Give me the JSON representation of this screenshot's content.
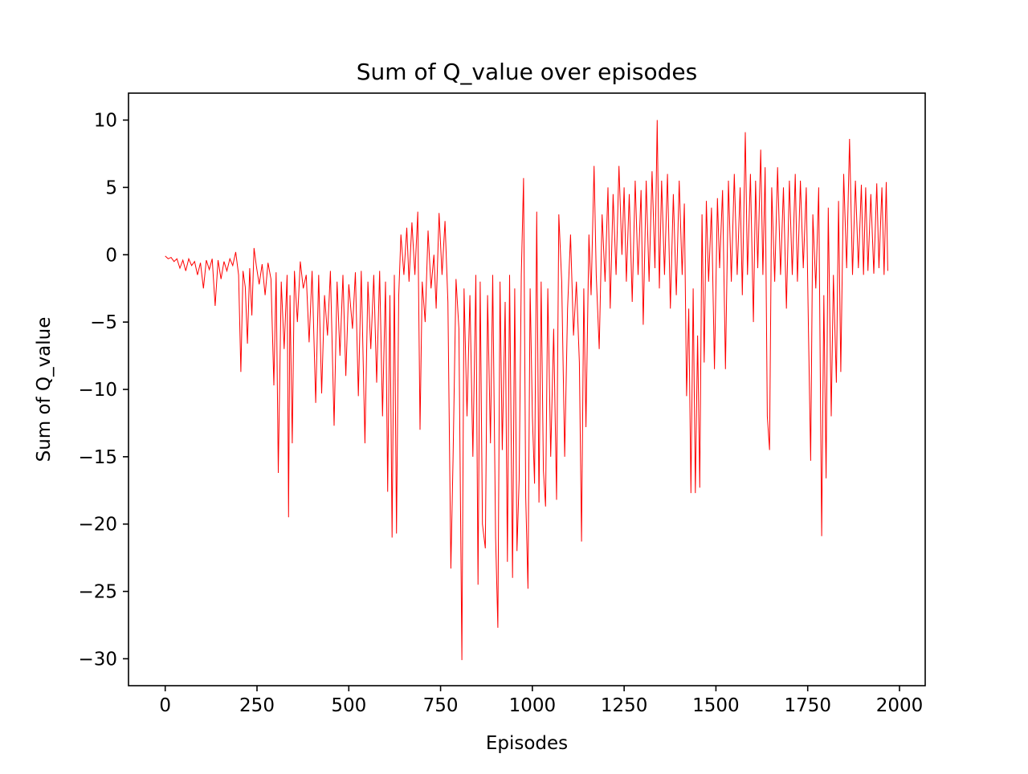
{
  "chart_data": {
    "type": "line",
    "title": "Sum of Q_value over episodes",
    "xlabel": "Episodes",
    "ylabel": "Sum of Q_value",
    "xlim": [
      -100,
      2070
    ],
    "ylim": [
      -32,
      12
    ],
    "xticks": [
      0,
      250,
      500,
      750,
      1000,
      1250,
      1500,
      1750,
      2000
    ],
    "xtick_labels": [
      "0",
      "250",
      "500",
      "750",
      "1000",
      "1250",
      "1500",
      "1750",
      "2000"
    ],
    "yticks": [
      10,
      5,
      0,
      -5,
      -10,
      -15,
      -20,
      -25,
      -30
    ],
    "ytick_labels": [
      "10",
      "5",
      "0",
      "−5",
      "−10",
      "−15",
      "−20",
      "−25",
      "−30"
    ],
    "grid": false,
    "legend": "none",
    "series": [
      {
        "color": "#ff0000",
        "points": [
          [
            0,
            -0.1
          ],
          [
            8,
            -0.3
          ],
          [
            16,
            -0.2
          ],
          [
            24,
            -0.5
          ],
          [
            32,
            -0.3
          ],
          [
            40,
            -1.0
          ],
          [
            48,
            -0.4
          ],
          [
            56,
            -1.2
          ],
          [
            64,
            -0.3
          ],
          [
            72,
            -0.8
          ],
          [
            80,
            -0.5
          ],
          [
            88,
            -1.5
          ],
          [
            96,
            -0.6
          ],
          [
            104,
            -2.5
          ],
          [
            112,
            -0.4
          ],
          [
            120,
            -1.1
          ],
          [
            128,
            -0.3
          ],
          [
            136,
            -3.8
          ],
          [
            144,
            -0.4
          ],
          [
            152,
            -1.8
          ],
          [
            160,
            -0.5
          ],
          [
            168,
            -1.2
          ],
          [
            176,
            -0.3
          ],
          [
            184,
            -0.8
          ],
          [
            192,
            0.2
          ],
          [
            200,
            -1.5
          ],
          [
            206,
            -8.7
          ],
          [
            212,
            -1.2
          ],
          [
            218,
            -2.4
          ],
          [
            224,
            -6.6
          ],
          [
            230,
            -1.0
          ],
          [
            236,
            -4.5
          ],
          [
            242,
            0.5
          ],
          [
            248,
            -0.8
          ],
          [
            256,
            -2.2
          ],
          [
            264,
            -0.7
          ],
          [
            272,
            -3.0
          ],
          [
            280,
            -0.6
          ],
          [
            288,
            -1.8
          ],
          [
            296,
            -9.7
          ],
          [
            302,
            -1.3
          ],
          [
            308,
            -16.2
          ],
          [
            316,
            -2.0
          ],
          [
            324,
            -7.0
          ],
          [
            332,
            -1.5
          ],
          [
            336,
            -19.5
          ],
          [
            340,
            -3.0
          ],
          [
            346,
            -14.0
          ],
          [
            352,
            -1.2
          ],
          [
            360,
            -5.0
          ],
          [
            368,
            -0.5
          ],
          [
            376,
            -2.5
          ],
          [
            384,
            -1.5
          ],
          [
            392,
            -6.5
          ],
          [
            400,
            -1.2
          ],
          [
            410,
            -11.0
          ],
          [
            418,
            -1.5
          ],
          [
            426,
            -10.3
          ],
          [
            434,
            -3.0
          ],
          [
            442,
            -6.0
          ],
          [
            450,
            -1.2
          ],
          [
            460,
            -12.7
          ],
          [
            468,
            -2.0
          ],
          [
            476,
            -7.5
          ],
          [
            484,
            -1.5
          ],
          [
            492,
            -9.0
          ],
          [
            500,
            -2.2
          ],
          [
            510,
            -5.5
          ],
          [
            518,
            -1.3
          ],
          [
            526,
            -10.5
          ],
          [
            534,
            -1.2
          ],
          [
            544,
            -14.0
          ],
          [
            552,
            -2.0
          ],
          [
            560,
            -7.0
          ],
          [
            568,
            -1.5
          ],
          [
            576,
            -9.5
          ],
          [
            584,
            -1.2
          ],
          [
            592,
            -12.0
          ],
          [
            600,
            -2.0
          ],
          [
            606,
            -17.6
          ],
          [
            612,
            -3.0
          ],
          [
            618,
            -21.0
          ],
          [
            624,
            -1.5
          ],
          [
            630,
            -20.7
          ],
          [
            636,
            -3.0
          ],
          [
            642,
            1.5
          ],
          [
            650,
            -1.5
          ],
          [
            658,
            2.0
          ],
          [
            664,
            -2.0
          ],
          [
            672,
            2.4
          ],
          [
            680,
            -1.5
          ],
          [
            688,
            3.2
          ],
          [
            694,
            -13.0
          ],
          [
            700,
            -2.0
          ],
          [
            708,
            -5.0
          ],
          [
            716,
            1.8
          ],
          [
            724,
            -2.5
          ],
          [
            732,
            0.0
          ],
          [
            738,
            -4.0
          ],
          [
            746,
            3.1
          ],
          [
            754,
            -1.5
          ],
          [
            762,
            2.5
          ],
          [
            770,
            -3.5
          ],
          [
            778,
            -23.3
          ],
          [
            784,
            -15.2
          ],
          [
            792,
            -1.8
          ],
          [
            800,
            -5.5
          ],
          [
            808,
            -30.1
          ],
          [
            814,
            -2.5
          ],
          [
            822,
            -12.0
          ],
          [
            830,
            -3.0
          ],
          [
            838,
            -15.0
          ],
          [
            846,
            -1.5
          ],
          [
            852,
            -24.5
          ],
          [
            858,
            -2.0
          ],
          [
            864,
            -20.0
          ],
          [
            872,
            -21.8
          ],
          [
            878,
            -3.0
          ],
          [
            886,
            -14.0
          ],
          [
            892,
            -1.5
          ],
          [
            900,
            -21.0
          ],
          [
            906,
            -27.7
          ],
          [
            912,
            -2.0
          ],
          [
            918,
            -14.5
          ],
          [
            926,
            -3.5
          ],
          [
            932,
            -22.8
          ],
          [
            938,
            -1.5
          ],
          [
            946,
            -24.0
          ],
          [
            952,
            -2.5
          ],
          [
            958,
            -22.0
          ],
          [
            964,
            -16.7
          ],
          [
            970,
            -1.5
          ],
          [
            976,
            5.7
          ],
          [
            982,
            -18.0
          ],
          [
            988,
            -24.8
          ],
          [
            994,
            -2.5
          ],
          [
            1000,
            -12.0
          ],
          [
            1006,
            -17.0
          ],
          [
            1012,
            3.2
          ],
          [
            1018,
            -18.4
          ],
          [
            1024,
            -2.0
          ],
          [
            1030,
            -16.0
          ],
          [
            1036,
            -18.7
          ],
          [
            1042,
            -2.5
          ],
          [
            1050,
            -15.0
          ],
          [
            1058,
            -5.5
          ],
          [
            1066,
            -18.2
          ],
          [
            1072,
            3.0
          ],
          [
            1080,
            -2.0
          ],
          [
            1088,
            -15.0
          ],
          [
            1096,
            -4.0
          ],
          [
            1104,
            1.5
          ],
          [
            1112,
            -6.0
          ],
          [
            1120,
            -2.0
          ],
          [
            1128,
            -8.0
          ],
          [
            1134,
            -21.3
          ],
          [
            1140,
            -2.5
          ],
          [
            1146,
            -12.8
          ],
          [
            1154,
            1.5
          ],
          [
            1160,
            -3.0
          ],
          [
            1168,
            6.6
          ],
          [
            1174,
            -1.5
          ],
          [
            1182,
            -7.0
          ],
          [
            1190,
            3.0
          ],
          [
            1198,
            -2.0
          ],
          [
            1206,
            5.0
          ],
          [
            1212,
            -4.0
          ],
          [
            1220,
            4.5
          ],
          [
            1228,
            -1.5
          ],
          [
            1236,
            6.6
          ],
          [
            1244,
            0.0
          ],
          [
            1250,
            5.0
          ],
          [
            1256,
            -2.0
          ],
          [
            1264,
            4.5
          ],
          [
            1272,
            -3.5
          ],
          [
            1280,
            5.5
          ],
          [
            1288,
            -1.5
          ],
          [
            1296,
            4.8
          ],
          [
            1302,
            -5.2
          ],
          [
            1310,
            5.5
          ],
          [
            1318,
            -2.0
          ],
          [
            1326,
            6.2
          ],
          [
            1334,
            -1.0
          ],
          [
            1340,
            10.0
          ],
          [
            1346,
            -2.5
          ],
          [
            1352,
            5.5
          ],
          [
            1360,
            -1.5
          ],
          [
            1368,
            6.0
          ],
          [
            1376,
            -4.0
          ],
          [
            1384,
            4.5
          ],
          [
            1392,
            -3.0
          ],
          [
            1400,
            5.5
          ],
          [
            1408,
            -1.5
          ],
          [
            1414,
            3.8
          ],
          [
            1420,
            -10.5
          ],
          [
            1426,
            -4.0
          ],
          [
            1432,
            -17.7
          ],
          [
            1438,
            -2.5
          ],
          [
            1444,
            -17.7
          ],
          [
            1450,
            -6.0
          ],
          [
            1456,
            -17.3
          ],
          [
            1462,
            3.0
          ],
          [
            1468,
            -8.0
          ],
          [
            1474,
            4.0
          ],
          [
            1480,
            -2.0
          ],
          [
            1488,
            3.5
          ],
          [
            1496,
            -8.5
          ],
          [
            1504,
            4.2
          ],
          [
            1510,
            -1.0
          ],
          [
            1518,
            4.8
          ],
          [
            1526,
            -8.5
          ],
          [
            1534,
            5.5
          ],
          [
            1542,
            -2.0
          ],
          [
            1550,
            6.0
          ],
          [
            1558,
            -1.5
          ],
          [
            1566,
            5.0
          ],
          [
            1572,
            -3.0
          ],
          [
            1580,
            9.1
          ],
          [
            1586,
            -1.5
          ],
          [
            1594,
            6.0
          ],
          [
            1602,
            -5.0
          ],
          [
            1608,
            5.5
          ],
          [
            1614,
            -1.0
          ],
          [
            1622,
            7.8
          ],
          [
            1628,
            -1.5
          ],
          [
            1634,
            6.5
          ],
          [
            1640,
            -12.0
          ],
          [
            1646,
            -14.5
          ],
          [
            1652,
            5.0
          ],
          [
            1660,
            -2.0
          ],
          [
            1668,
            6.5
          ],
          [
            1676,
            -1.5
          ],
          [
            1684,
            5.0
          ],
          [
            1692,
            -4.0
          ],
          [
            1700,
            5.5
          ],
          [
            1708,
            -1.5
          ],
          [
            1716,
            6.0
          ],
          [
            1722,
            -2.0
          ],
          [
            1730,
            5.5
          ],
          [
            1738,
            -1.0
          ],
          [
            1746,
            5.0
          ],
          [
            1752,
            -5.5
          ],
          [
            1758,
            -15.3
          ],
          [
            1764,
            3.0
          ],
          [
            1772,
            -2.5
          ],
          [
            1780,
            5.0
          ],
          [
            1788,
            -20.9
          ],
          [
            1794,
            -3.0
          ],
          [
            1800,
            -16.6
          ],
          [
            1806,
            3.5
          ],
          [
            1814,
            -12.0
          ],
          [
            1820,
            -1.5
          ],
          [
            1828,
            -9.5
          ],
          [
            1834,
            4.0
          ],
          [
            1840,
            -8.7
          ],
          [
            1848,
            6.0
          ],
          [
            1856,
            -1.0
          ],
          [
            1864,
            8.6
          ],
          [
            1872,
            -1.5
          ],
          [
            1880,
            5.5
          ],
          [
            1888,
            -1.0
          ],
          [
            1896,
            5.2
          ],
          [
            1902,
            -1.5
          ],
          [
            1908,
            5.0
          ],
          [
            1914,
            -1.2
          ],
          [
            1922,
            4.5
          ],
          [
            1930,
            -1.4
          ],
          [
            1938,
            5.3
          ],
          [
            1944,
            -1.0
          ],
          [
            1952,
            5.0
          ],
          [
            1958,
            -1.5
          ],
          [
            1964,
            5.4
          ],
          [
            1968,
            -1.2
          ]
        ]
      }
    ]
  }
}
